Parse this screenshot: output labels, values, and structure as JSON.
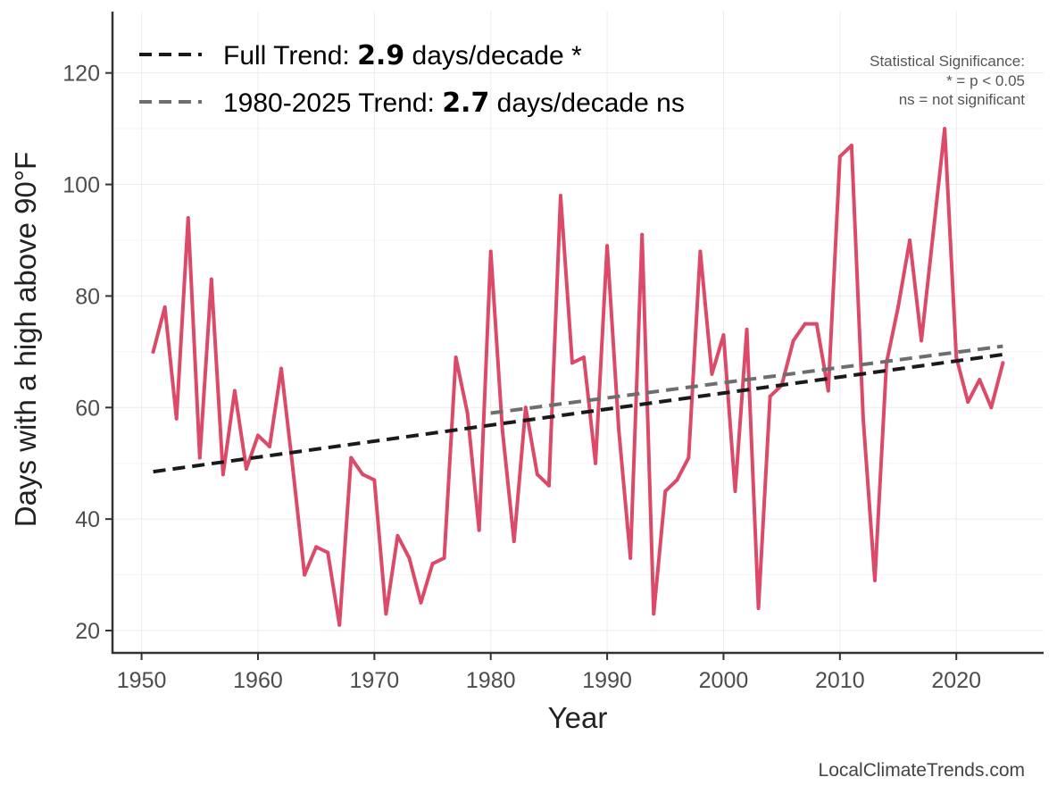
{
  "chart_data": {
    "type": "line",
    "xlabel": "Year",
    "ylabel": "Days with a high above 90°F",
    "xlim": [
      1947.5,
      2027.5
    ],
    "ylim": [
      16,
      131
    ],
    "x_ticks": [
      1950,
      1960,
      1970,
      1980,
      1990,
      2000,
      2010,
      2020
    ],
    "y_ticks": [
      20,
      40,
      60,
      80,
      100,
      120
    ],
    "grid": true,
    "series": [
      {
        "name": "Days with a high above 90°F",
        "color": "#DC4A6A",
        "x": [
          1951,
          1952,
          1953,
          1954,
          1955,
          1956,
          1957,
          1958,
          1959,
          1960,
          1961,
          1962,
          1963,
          1964,
          1965,
          1966,
          1967,
          1968,
          1969,
          1970,
          1971,
          1972,
          1973,
          1974,
          1975,
          1976,
          1977,
          1978,
          1979,
          1980,
          1981,
          1982,
          1983,
          1984,
          1985,
          1986,
          1987,
          1988,
          1989,
          1990,
          1991,
          1992,
          1993,
          1994,
          1995,
          1996,
          1997,
          1998,
          1999,
          2000,
          2001,
          2002,
          2003,
          2004,
          2005,
          2006,
          2007,
          2008,
          2009,
          2010,
          2011,
          2012,
          2013,
          2014,
          2015,
          2016,
          2017,
          2018,
          2019,
          2020,
          2021,
          2022,
          2023,
          2024
        ],
        "values": [
          70,
          78,
          58,
          94,
          51,
          83,
          48,
          63,
          49,
          55,
          53,
          67,
          49,
          30,
          35,
          34,
          21,
          51,
          48,
          47,
          23,
          37,
          33,
          25,
          32,
          33,
          69,
          59,
          38,
          88,
          56,
          36,
          60,
          48,
          46,
          98,
          68,
          69,
          50,
          89,
          56,
          33,
          91,
          23,
          45,
          47,
          51,
          88,
          66,
          73,
          45,
          74,
          24,
          62,
          64,
          72,
          75,
          75,
          63,
          105,
          107,
          58,
          29,
          68,
          78,
          90,
          72,
          91,
          110,
          69,
          61,
          65,
          60,
          68
        ]
      }
    ],
    "trends": [
      {
        "name": "Full Trend",
        "x": [
          1951,
          2024
        ],
        "y": [
          48.5,
          69.5
        ],
        "color": "#1a1a1a",
        "label_prefix": "Full Trend: ",
        "rate": "2.9",
        "label_suffix": " days/decade *"
      },
      {
        "name": "1980-2025 Trend",
        "x": [
          1980,
          2024
        ],
        "y": [
          59.0,
          71.0
        ],
        "color": "#6e6e6e",
        "label_prefix": "1980-2025 Trend: ",
        "rate": "2.7",
        "label_suffix": " days/decade ns"
      }
    ],
    "significance_note": [
      "Statistical Significance:",
      "* = p < 0.05",
      "ns = not significant"
    ],
    "source": "LocalClimateTrends.com"
  }
}
